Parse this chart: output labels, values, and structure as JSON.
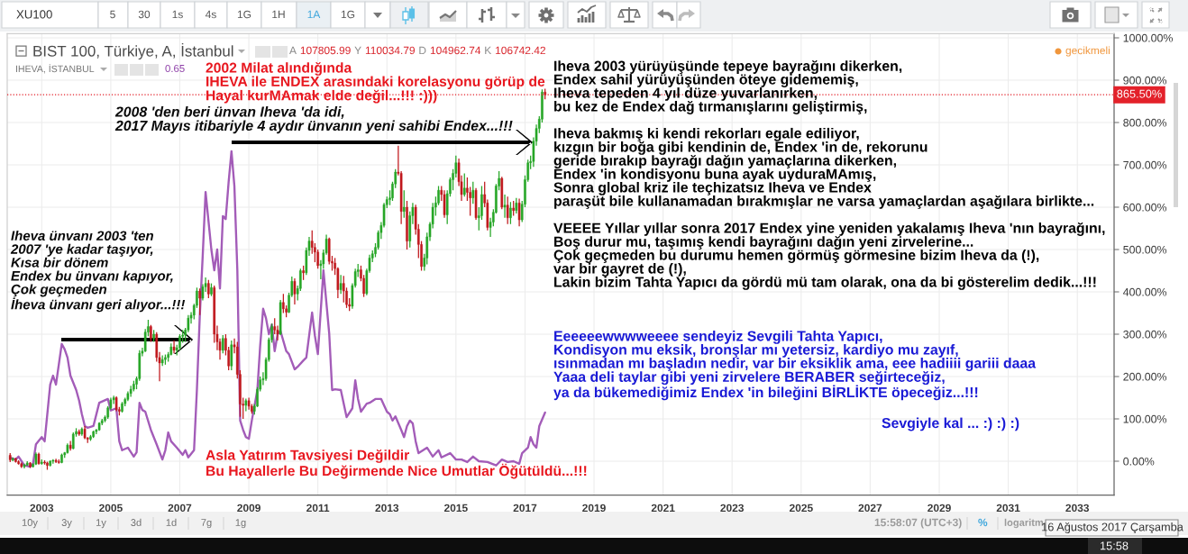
{
  "chart_data": {
    "type": "candlestick",
    "title": "BIST 100, Türkiye, A, İstanbul",
    "annotations": [
      "A 107805.99 Y 110034.79 D 104962.74 K 106742.42",
      "IHEVA, İSTANBUL",
      "0.65",
      "gecikmeli",
      "2002 Milat alındığında\nIHEVA ile ENDEX arasındaki korelasyonu görüp de\nHayal kurMAmak elde değil...!!! :)))",
      "2008 'den beri ünvan Iheva 'da idi,\n2017 Mayıs itibariyle 4 aydır ünvanın yeni sahibi Endex...!!!",
      "Iheva ünvanı 2003 'ten\n2007 'ye kadar taşıyor,\nKısa bir dönem\nEndex bu ünvanı kapıyor,\nÇok geçmeden\nİheva ünvanı geri alıyor...!!!",
      "Iheva 2003 yürüyüşünde tepeye bayrağını dikerken,\nEndex sahil yürüyüşünden öteye gidememiş,\nIheva tepeden 4 yıl düze yuvarlanırken,\nbu kez de Endex dağ tırmanışlarını geliştirmiş,\n\nIheva bakmış ki kendi rekorları egale ediliyor,\nkızgın bir boğa gibi kendinin de, Endex 'in de, rekorunu\ngeride bırakıp bayrağı dağın yamaçlarına dikerken,\nEndex 'in kondisyonu buna ayak uyduraMAmış,\nSonra global kriz ile teçhizatsız Iheva ve Endex\nparaşüt bile kullanamadan bırakmışlar ne varsa yamaçlardan aşağılara birlikte...\n\nVEEEE Yıllar yıllar sonra 2017 Endex yine yeniden yakalamış Iheva 'nın bayrağını,\nBoş durur mu, taşımış kendi bayrağını dağın yeni zirvelerine...\nÇok geçmeden bu durumu hemen görmüş görmesine bizim Iheva da (!),\nvar bir gayret de (!),\nLakin bizim Tahta Yapıcı da gördü mü tam olarak, ona da bi gösterelim dedik...!!!",
      "Eeeeeewwwweeee sendeyiz Sevgili Tahta Yapıcı,\nKondisyon mu eksik, bronşlar mı yetersiz, kardiyo mu zayıf,\nısınmadan mı başladın nedir, var bir eksiklik ama, eee hadiiii gariii daaa\nYaaa deli taylar gibi yeni zirvelere BERABER seğirteceğiz,\nya da bükemediğimiz Endex 'in bileğini BİRLİKTE öpeceğiz...!!!",
      "Sevgiyle kal ... :) :) :)",
      "Asla Yatırım Tavsiyesi Değildir\nBu Hayallerle Bu Değirmende Nice Umutlar Öğütüldü...!!!",
      "XU100",
      "5",
      "30",
      "1s",
      "4s",
      "1G",
      "1H",
      "1A",
      "1G",
      "10y",
      "3y",
      "1y",
      "3d",
      "1d",
      "7g",
      "1g",
      "15:58:07 (UTC+3)",
      "%",
      "logaritm",
      "16 Ağustos 2017 Çarşamba",
      "15:58"
    ],
    "xlim": [
      "2002-01-01",
      "2034-01-25"
    ],
    "xticks": [
      "2003",
      "2005",
      "2007",
      "2009",
      "2011",
      "2013",
      "2015",
      "2017",
      "2019",
      "2021",
      "2023",
      "2025",
      "2027",
      "2029",
      "2031",
      "2033"
    ],
    "ylim": [
      -80,
      1010
    ],
    "yticks": [
      {
        "value": 0,
        "label": "0.00%"
      },
      {
        "value": 100,
        "label": "100.00%"
      },
      {
        "value": 200,
        "label": "200.00%"
      },
      {
        "value": 300,
        "label": "300.00%"
      },
      {
        "value": 400,
        "label": "400.00%"
      },
      {
        "value": 500,
        "label": "500.00%"
      },
      {
        "value": 600,
        "label": "600.00%"
      },
      {
        "value": 700,
        "label": "700.00%"
      },
      {
        "value": 800,
        "label": "800.00%"
      },
      {
        "value": 900,
        "label": "900.00%"
      },
      {
        "value": 1000,
        "label": "1000.00%"
      }
    ],
    "grid": true,
    "ref_lines": [
      {
        "axis": "y",
        "value": 865.5,
        "label": "865.50%",
        "color": "#e3212a",
        "line_style": "dotted"
      }
    ],
    "x": [
      "2002-02",
      "2002-03",
      "2002-04",
      "2002-05",
      "2002-06",
      "2002-07",
      "2002-08",
      "2002-09",
      "2002-10",
      "2002-11",
      "2002-12",
      "2003-01",
      "2003-02",
      "2003-03",
      "2003-04",
      "2003-05",
      "2003-06",
      "2003-07",
      "2003-08",
      "2003-09",
      "2003-10",
      "2003-11",
      "2003-12",
      "2004-01",
      "2004-02",
      "2004-03",
      "2004-04",
      "2004-05",
      "2004-06",
      "2004-07",
      "2004-08",
      "2004-09",
      "2004-10",
      "2004-11",
      "2004-12",
      "2005-01",
      "2005-02",
      "2005-03",
      "2005-04",
      "2005-05",
      "2005-06",
      "2005-07",
      "2005-08",
      "2005-09",
      "2005-10",
      "2005-11",
      "2005-12",
      "2006-01",
      "2006-02",
      "2006-03",
      "2006-04",
      "2006-05",
      "2006-06",
      "2006-07",
      "2006-08",
      "2006-09",
      "2006-10",
      "2006-11",
      "2006-12",
      "2007-01",
      "2007-02",
      "2007-03",
      "2007-04",
      "2007-05",
      "2007-06",
      "2007-07",
      "2007-08",
      "2007-09",
      "2007-10",
      "2007-11",
      "2007-12",
      "2008-01",
      "2008-02",
      "2008-03",
      "2008-04",
      "2008-05",
      "2008-06",
      "2008-07",
      "2008-08",
      "2008-09",
      "2008-10",
      "2008-11",
      "2008-12",
      "2009-01",
      "2009-02",
      "2009-03",
      "2009-04",
      "2009-05",
      "2009-06",
      "2009-07",
      "2009-08",
      "2009-09",
      "2009-10",
      "2009-11",
      "2009-12",
      "2010-01",
      "2010-02",
      "2010-03",
      "2010-04",
      "2010-05",
      "2010-06",
      "2010-07",
      "2010-08",
      "2010-09",
      "2010-10",
      "2010-11",
      "2010-12",
      "2011-01",
      "2011-02",
      "2011-03",
      "2011-04",
      "2011-05",
      "2011-06",
      "2011-07",
      "2011-08",
      "2011-09",
      "2011-10",
      "2011-11",
      "2011-12",
      "2012-01",
      "2012-02",
      "2012-03",
      "2012-04",
      "2012-05",
      "2012-06",
      "2012-07",
      "2012-08",
      "2012-09",
      "2012-10",
      "2012-11",
      "2012-12",
      "2013-01",
      "2013-02",
      "2013-03",
      "2013-04",
      "2013-05",
      "2013-06",
      "2013-07",
      "2013-08",
      "2013-09",
      "2013-10",
      "2013-11",
      "2013-12",
      "2014-01",
      "2014-02",
      "2014-03",
      "2014-04",
      "2014-05",
      "2014-06",
      "2014-07",
      "2014-08",
      "2014-09",
      "2014-10",
      "2014-11",
      "2014-12",
      "2015-01",
      "2015-02",
      "2015-03",
      "2015-04",
      "2015-05",
      "2015-06",
      "2015-07",
      "2015-08",
      "2015-09",
      "2015-10",
      "2015-11",
      "2015-12",
      "2016-01",
      "2016-02",
      "2016-03",
      "2016-04",
      "2016-05",
      "2016-06",
      "2016-07",
      "2016-08",
      "2016-09",
      "2016-10",
      "2016-11",
      "2016-12",
      "2017-01",
      "2017-02",
      "2017-03",
      "2017-04",
      "2017-05",
      "2017-06",
      "2017-07",
      "2017-08"
    ],
    "ohlc": [
      [
        14,
        19,
        -2,
        3
      ],
      [
        3,
        9,
        0,
        6
      ],
      [
        6,
        8,
        -3,
        -1
      ],
      [
        -1,
        2,
        -8,
        -6
      ],
      [
        -6,
        -3,
        -16,
        -13
      ],
      [
        -13,
        -6,
        -17,
        -9
      ],
      [
        -9,
        0,
        -11,
        -4
      ],
      [
        -4,
        -2,
        -16,
        -13
      ],
      [
        -13,
        -5,
        -15,
        -7
      ],
      [
        -7,
        21,
        -9,
        17
      ],
      [
        17,
        20,
        -8,
        -6
      ],
      [
        -6,
        4,
        -8,
        -2
      ],
      [
        -2,
        2,
        -8,
        -4
      ],
      [
        -4,
        -1,
        -20,
        -10
      ],
      [
        -10,
        2,
        -12,
        0
      ],
      [
        0,
        5,
        -6,
        2
      ],
      [
        2,
        6,
        -4,
        -1
      ],
      [
        -1,
        4,
        -6,
        -3
      ],
      [
        -3,
        18,
        -5,
        15
      ],
      [
        15,
        22,
        8,
        20
      ],
      [
        20,
        42,
        18,
        38
      ],
      [
        38,
        48,
        25,
        30
      ],
      [
        30,
        68,
        28,
        64
      ],
      [
        64,
        78,
        58,
        70
      ],
      [
        70,
        75,
        60,
        64
      ],
      [
        64,
        80,
        60,
        76
      ],
      [
        76,
        83,
        52,
        55
      ],
      [
        55,
        57,
        43,
        52
      ],
      [
        52,
        62,
        48,
        58
      ],
      [
        58,
        72,
        55,
        70
      ],
      [
        70,
        76,
        64,
        74
      ],
      [
        74,
        92,
        72,
        90
      ],
      [
        90,
        100,
        85,
        96
      ],
      [
        96,
        108,
        92,
        104
      ],
      [
        104,
        130,
        100,
        126
      ],
      [
        126,
        150,
        122,
        145
      ],
      [
        145,
        155,
        135,
        150
      ],
      [
        150,
        153,
        118,
        122
      ],
      [
        122,
        128,
        108,
        118
      ],
      [
        118,
        140,
        115,
        136
      ],
      [
        136,
        150,
        130,
        146
      ],
      [
        146,
        165,
        142,
        160
      ],
      [
        160,
        178,
        152,
        170
      ],
      [
        170,
        190,
        165,
        182
      ],
      [
        182,
        200,
        170,
        195
      ],
      [
        195,
        262,
        190,
        255
      ],
      [
        255,
        268,
        248,
        260
      ],
      [
        260,
        312,
        258,
        305
      ],
      [
        305,
        334,
        295,
        318
      ],
      [
        318,
        322,
        282,
        290
      ],
      [
        290,
        310,
        282,
        300
      ],
      [
        300,
        305,
        235,
        245
      ],
      [
        245,
        258,
        189,
        232
      ],
      [
        232,
        250,
        225,
        240
      ],
      [
        240,
        252,
        228,
        245
      ],
      [
        245,
        258,
        235,
        252
      ],
      [
        252,
        278,
        250,
        270
      ],
      [
        270,
        285,
        255,
        262
      ],
      [
        262,
        275,
        250,
        268
      ],
      [
        268,
        300,
        262,
        295
      ],
      [
        295,
        310,
        280,
        298
      ],
      [
        298,
        315,
        282,
        310
      ],
      [
        310,
        345,
        305,
        338
      ],
      [
        338,
        352,
        325,
        345
      ],
      [
        345,
        372,
        335,
        368
      ],
      [
        368,
        410,
        362,
        402
      ],
      [
        402,
        408,
        345,
        385
      ],
      [
        385,
        418,
        380,
        412
      ],
      [
        412,
        434,
        400,
        420
      ],
      [
        420,
        428,
        385,
        395
      ],
      [
        395,
        420,
        390,
        410
      ],
      [
        410,
        415,
        280,
        300
      ],
      [
        300,
        320,
        262,
        282
      ],
      [
        282,
        290,
        240,
        262
      ],
      [
        262,
        298,
        255,
        290
      ],
      [
        290,
        300,
        250,
        262
      ],
      [
        262,
        270,
        215,
        225
      ],
      [
        225,
        285,
        215,
        275
      ],
      [
        275,
        290,
        255,
        270
      ],
      [
        270,
        282,
        195,
        205
      ],
      [
        205,
        215,
        105,
        135
      ],
      [
        135,
        150,
        100,
        132
      ],
      [
        132,
        148,
        118,
        143
      ],
      [
        143,
        150,
        122,
        130
      ],
      [
        130,
        135,
        112,
        118
      ],
      [
        118,
        135,
        110,
        130
      ],
      [
        130,
        175,
        128,
        170
      ],
      [
        170,
        200,
        165,
        192
      ],
      [
        192,
        210,
        180,
        195
      ],
      [
        195,
        245,
        190,
        240
      ],
      [
        240,
        292,
        235,
        287
      ],
      [
        287,
        325,
        280,
        318
      ],
      [
        318,
        338,
        300,
        310
      ],
      [
        310,
        320,
        285,
        300
      ],
      [
        300,
        381,
        298,
        375
      ],
      [
        375,
        395,
        350,
        360
      ],
      [
        360,
        368,
        340,
        352
      ],
      [
        352,
        398,
        350,
        392
      ],
      [
        392,
        436,
        388,
        425
      ],
      [
        425,
        432,
        370,
        395
      ],
      [
        395,
        415,
        380,
        408
      ],
      [
        408,
        455,
        402,
        450
      ],
      [
        450,
        462,
        428,
        445
      ],
      [
        445,
        505,
        440,
        498
      ],
      [
        498,
        530,
        485,
        520
      ],
      [
        520,
        545,
        490,
        505
      ],
      [
        505,
        515,
        470,
        494
      ],
      [
        494,
        500,
        455,
        462
      ],
      [
        462,
        475,
        430,
        466
      ],
      [
        466,
        500,
        455,
        492
      ],
      [
        492,
        535,
        488,
        525
      ],
      [
        525,
        528,
        465,
        472
      ],
      [
        472,
        485,
        450,
        468
      ],
      [
        468,
        480,
        440,
        455
      ],
      [
        455,
        458,
        385,
        405
      ],
      [
        405,
        440,
        395,
        420
      ],
      [
        420,
        438,
        375,
        402
      ],
      [
        402,
        410,
        362,
        370
      ],
      [
        370,
        385,
        355,
        366
      ],
      [
        366,
        420,
        360,
        415
      ],
      [
        415,
        455,
        410,
        448
      ],
      [
        448,
        466,
        435,
        452
      ],
      [
        452,
        462,
        425,
        432
      ],
      [
        432,
        440,
        388,
        396
      ],
      [
        396,
        455,
        392,
        450
      ],
      [
        450,
        488,
        445,
        480
      ],
      [
        480,
        498,
        470,
        490
      ],
      [
        490,
        515,
        482,
        505
      ],
      [
        505,
        545,
        500,
        540
      ],
      [
        540,
        565,
        525,
        557
      ],
      [
        557,
        610,
        552,
        606
      ],
      [
        606,
        625,
        598,
        618
      ],
      [
        618,
        640,
        605,
        622
      ],
      [
        622,
        660,
        615,
        655
      ],
      [
        655,
        690,
        645,
        683
      ],
      [
        683,
        745,
        675,
        680
      ],
      [
        680,
        685,
        560,
        590
      ],
      [
        590,
        640,
        575,
        600
      ],
      [
        600,
        615,
        500,
        520
      ],
      [
        520,
        590,
        505,
        580
      ],
      [
        580,
        610,
        560,
        600
      ],
      [
        600,
        606,
        535,
        548
      ],
      [
        548,
        560,
        480,
        512
      ],
      [
        512,
        520,
        450,
        460
      ],
      [
        460,
        490,
        450,
        480
      ],
      [
        480,
        540,
        465,
        530
      ],
      [
        530,
        565,
        520,
        560
      ],
      [
        560,
        610,
        550,
        600
      ],
      [
        600,
        625,
        580,
        610
      ],
      [
        610,
        650,
        605,
        640
      ],
      [
        640,
        650,
        615,
        630
      ],
      [
        630,
        640,
        575,
        582
      ],
      [
        582,
        640,
        560,
        632
      ],
      [
        632,
        670,
        625,
        665
      ],
      [
        665,
        690,
        640,
        680
      ],
      [
        680,
        722,
        670,
        705
      ],
      [
        705,
        715,
        650,
        660
      ],
      [
        660,
        675,
        615,
        630
      ],
      [
        630,
        680,
        625,
        645
      ],
      [
        645,
        670,
        615,
        635
      ],
      [
        635,
        648,
        580,
        622
      ],
      [
        622,
        660,
        608,
        640
      ],
      [
        640,
        645,
        570,
        575
      ],
      [
        575,
        600,
        545,
        580
      ],
      [
        580,
        650,
        570,
        630
      ],
      [
        630,
        660,
        600,
        610
      ],
      [
        610,
        618,
        545,
        552
      ],
      [
        552,
        575,
        530,
        565
      ],
      [
        565,
        595,
        555,
        588
      ],
      [
        588,
        655,
        585,
        650
      ],
      [
        650,
        685,
        640,
        668
      ],
      [
        668,
        672,
        595,
        600
      ],
      [
        600,
        630,
        575,
        605
      ],
      [
        605,
        625,
        560,
        575
      ],
      [
        575,
        612,
        560,
        598
      ],
      [
        598,
        615,
        580,
        592
      ],
      [
        592,
        622,
        585,
        610
      ],
      [
        610,
        620,
        555,
        570
      ],
      [
        570,
        615,
        565,
        607
      ],
      [
        607,
        675,
        600,
        665
      ],
      [
        665,
        712,
        660,
        705
      ],
      [
        705,
        722,
        690,
        708
      ],
      [
        708,
        765,
        695,
        756
      ],
      [
        756,
        795,
        745,
        786
      ],
      [
        786,
        815,
        775,
        808
      ],
      [
        808,
        878,
        800,
        872
      ],
      [
        872,
        880,
        855,
        865.5
      ]
    ],
    "colors": [
      "#c0181d",
      "#26a626",
      "#c0181d",
      "#c0181d",
      "#c0181d",
      "#26a626",
      "#26a626",
      "#c0181d",
      "#26a626",
      "#26a626",
      "#c0181d",
      "#26a626",
      "#c0181d",
      "#c0181d",
      "#26a626",
      "#26a626",
      "#c0181d",
      "#c0181d",
      "#26a626",
      "#26a626",
      "#26a626",
      "#c0181d",
      "#26a626",
      "#26a626",
      "#c0181d",
      "#26a626",
      "#c0181d",
      "#c0181d",
      "#26a626",
      "#26a626",
      "#26a626",
      "#26a626",
      "#26a626",
      "#26a626",
      "#26a626",
      "#26a626",
      "#26a626",
      "#c0181d",
      "#c0181d",
      "#26a626",
      "#26a626",
      "#26a626",
      "#26a626",
      "#26a626",
      "#26a626",
      "#26a626",
      "#26a626",
      "#26a626",
      "#26a626",
      "#c0181d",
      "#26a626",
      "#c0181d",
      "#c0181d",
      "#26a626",
      "#26a626",
      "#26a626",
      "#26a626",
      "#c0181d",
      "#26a626",
      "#26a626",
      "#26a626",
      "#26a626",
      "#26a626",
      "#26a626",
      "#26a626",
      "#26a626",
      "#c0181d",
      "#26a626",
      "#26a626",
      "#c0181d",
      "#26a626",
      "#c0181d",
      "#c0181d",
      "#c0181d",
      "#26a626",
      "#c0181d",
      "#c0181d",
      "#26a626",
      "#c0181d",
      "#c0181d",
      "#c0181d",
      "#c0181d",
      "#26a626",
      "#c0181d",
      "#c0181d",
      "#26a626",
      "#26a626",
      "#26a626",
      "#26a626",
      "#26a626",
      "#26a626",
      "#26a626",
      "#c0181d",
      "#c0181d",
      "#26a626",
      "#c0181d",
      "#c0181d",
      "#26a626",
      "#26a626",
      "#c0181d",
      "#26a626",
      "#26a626",
      "#c0181d",
      "#26a626",
      "#26a626",
      "#c0181d",
      "#c0181d",
      "#c0181d",
      "#26a626",
      "#26a626",
      "#26a626",
      "#c0181d",
      "#c0181d",
      "#c0181d",
      "#c0181d",
      "#26a626",
      "#c0181d",
      "#c0181d",
      "#c0181d",
      "#26a626",
      "#26a626",
      "#26a626",
      "#c0181d",
      "#c0181d",
      "#26a626",
      "#26a626",
      "#26a626",
      "#26a626",
      "#26a626",
      "#26a626",
      "#26a626",
      "#26a626",
      "#26a626",
      "#26a626",
      "#26a626",
      "#c0181d",
      "#c0181d",
      "#26a626",
      "#c0181d",
      "#26a626",
      "#26a626",
      "#c0181d",
      "#c0181d",
      "#c0181d",
      "#26a626",
      "#26a626",
      "#26a626",
      "#26a626",
      "#26a626",
      "#26a626",
      "#c0181d",
      "#c0181d",
      "#26a626",
      "#26a626",
      "#26a626",
      "#26a626",
      "#c0181d",
      "#c0181d",
      "#26a626",
      "#c0181d",
      "#c0181d",
      "#26a626",
      "#c0181d",
      "#26a626",
      "#26a626",
      "#c0181d",
      "#c0181d",
      "#26a626",
      "#26a626",
      "#26a626",
      "#26a626",
      "#c0181d",
      "#26a626",
      "#c0181d",
      "#26a626",
      "#c0181d",
      "#26a626",
      "#c0181d",
      "#26a626",
      "#26a626",
      "#26a626",
      "#26a626",
      "#26a626",
      "#26a626",
      "#26a626",
      "#26a626",
      "#c0181d"
    ],
    "series": [
      {
        "type": "line",
        "color": "#a35cb8",
        "x": [
          "2002-02",
          "2002-04",
          "2002-05",
          "2002-07",
          "2002-09",
          "2002-10",
          "2002-11",
          "2003-01",
          "2003-02",
          "2003-04",
          "2003-05",
          "2003-06",
          "2003-08",
          "2003-09",
          "2003-10",
          "2003-11",
          "2004-01",
          "2004-02",
          "2004-03",
          "2004-04",
          "2004-05",
          "2004-07",
          "2004-09",
          "2004-12",
          "2005-01",
          "2005-03",
          "2005-04",
          "2005-05",
          "2005-07",
          "2005-09",
          "2005-10",
          "2005-11",
          "2005-12",
          "2006-01",
          "2006-03",
          "2006-05",
          "2006-07",
          "2006-08",
          "2006-09",
          "2006-10",
          "2006-12",
          "2007-02",
          "2007-03",
          "2007-04",
          "2007-06",
          "2007-07",
          "2007-08",
          "2007-09",
          "2007-10",
          "2007-12",
          "2008-01",
          "2008-02",
          "2008-03",
          "2008-04",
          "2008-05",
          "2008-06",
          "2008-07",
          "2008-08",
          "2008-09",
          "2008-10",
          "2008-11",
          "2008-12",
          "2009-01",
          "2009-02",
          "2009-03",
          "2009-04",
          "2009-05",
          "2009-06",
          "2009-07",
          "2009-08",
          "2009-09",
          "2009-10",
          "2009-11",
          "2009-12",
          "2010-02",
          "2010-03",
          "2010-05",
          "2010-06",
          "2010-08",
          "2010-09",
          "2010-11",
          "2010-12",
          "2011-01",
          "2011-03",
          "2011-05",
          "2011-06",
          "2011-07",
          "2011-09",
          "2011-11",
          "2012-01",
          "2012-02",
          "2012-03",
          "2012-04",
          "2012-06",
          "2012-07",
          "2012-09",
          "2012-11",
          "2013-01",
          "2013-02",
          "2013-03",
          "2013-04",
          "2013-06",
          "2013-07",
          "2013-08",
          "2013-09",
          "2013-10",
          "2013-11",
          "2013-12",
          "2014-03",
          "2014-05",
          "2014-07",
          "2014-08",
          "2014-11",
          "2015-01",
          "2015-03",
          "2015-05",
          "2015-07",
          "2015-09",
          "2015-12",
          "2016-03",
          "2016-05",
          "2016-07",
          "2016-09",
          "2016-11",
          "2016-12",
          "2017-02",
          "2017-03",
          "2017-04",
          "2017-05",
          "2017-06",
          "2017-08"
        ],
        "values": [
          8,
          4,
          11,
          -10,
          -13,
          -6,
          40,
          57,
          47,
          181,
          202,
          181,
          277,
          264,
          245,
          202,
          168,
          143,
          111,
          83,
          79,
          83,
          138,
          147,
          120,
          125,
          47,
          26,
          32,
          11,
          21,
          138,
          121,
          117,
          74,
          40,
          4,
          26,
          68,
          47,
          32,
          15,
          26,
          9,
          26,
          168,
          345,
          487,
          636,
          500,
          451,
          500,
          408,
          579,
          572,
          660,
          732,
          649,
          451,
          96,
          74,
          57,
          53,
          96,
          130,
          168,
          274,
          360,
          338,
          300,
          323,
          260,
          300,
          308,
          260,
          253,
          217,
          223,
          238,
          245,
          351,
          296,
          253,
          451,
          302,
          168,
          170,
          168,
          104,
          125,
          191,
          147,
          117,
          136,
          138,
          147,
          147,
          117,
          111,
          96,
          106,
          74,
          57,
          83,
          96,
          89,
          47,
          19,
          32,
          11,
          26,
          9,
          19,
          4,
          4,
          -2,
          11,
          0,
          -2,
          -10,
          4,
          -2,
          0,
          -6,
          19,
          32,
          57,
          40,
          32,
          83,
          115
        ]
      }
    ]
  }
}
